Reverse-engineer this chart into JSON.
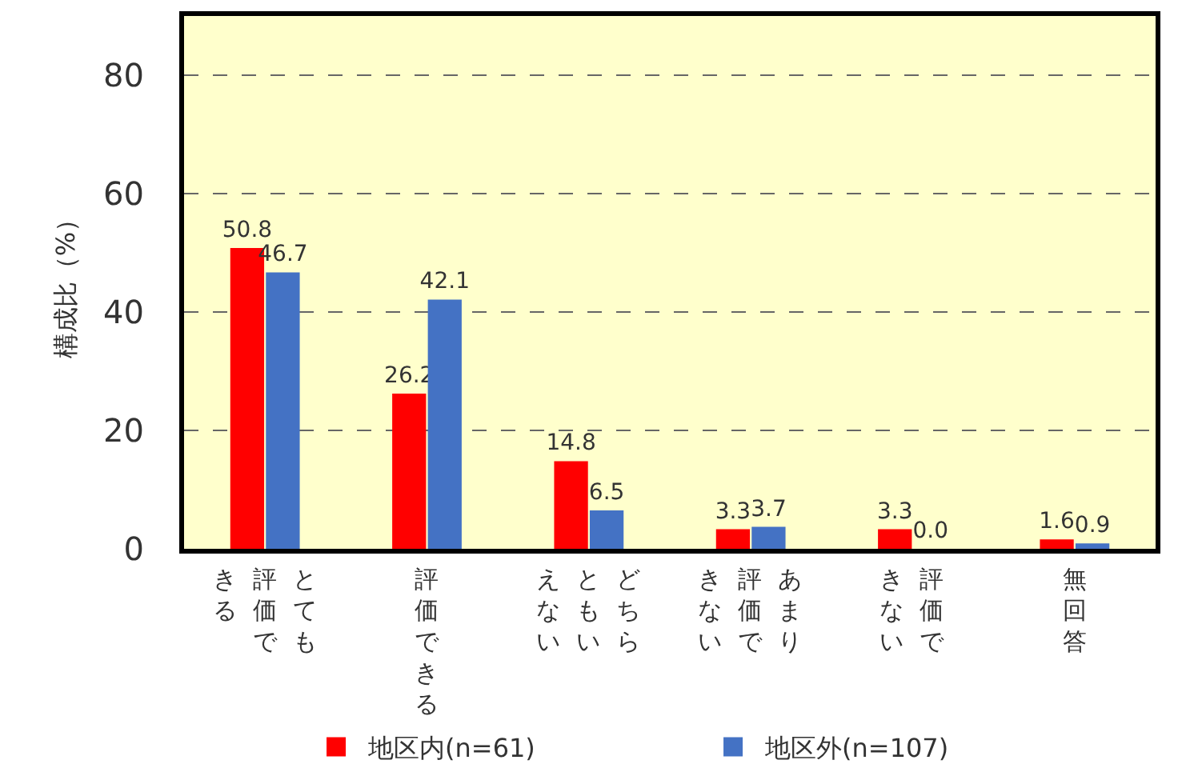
{
  "chart_data": {
    "type": "bar",
    "ylabel": "構成比（%）",
    "categories": [
      "とても評価できる",
      "評価できる",
      "どちらともいえない",
      "あまり評価できない",
      "評価できない",
      "無回答"
    ],
    "series": [
      {
        "name": "地区内(n=61)",
        "color": "#ff0000",
        "values": [
          50.8,
          26.2,
          14.8,
          3.3,
          3.3,
          1.6
        ],
        "value_labels": [
          "50.8",
          "26.2",
          "14.8",
          "3.3",
          "3.3",
          "1.6"
        ]
      },
      {
        "name": "地区外(n=107)",
        "color": "#4472c4",
        "values": [
          46.7,
          42.1,
          6.5,
          3.7,
          0.0,
          0.9
        ],
        "value_labels": [
          "46.7",
          "42.1",
          "6.5",
          "3.7",
          "0.0",
          "0.9"
        ]
      }
    ],
    "ylim": [
      0,
      90
    ],
    "yticks": [
      0,
      20,
      40,
      60,
      80
    ],
    "grid": "y",
    "legend": "bottom"
  }
}
